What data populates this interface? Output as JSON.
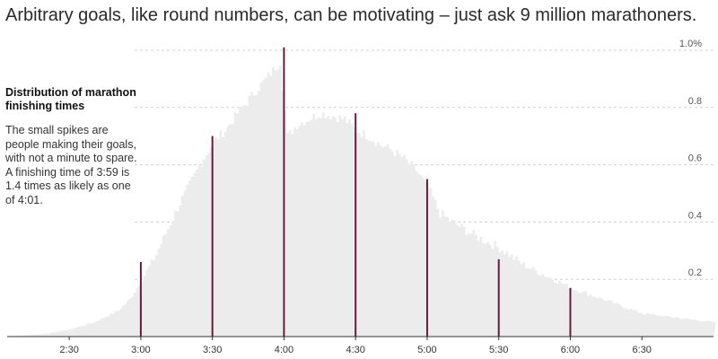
{
  "headline": "Arbitrary goals, like round numbers, can be motivating – just ask 9 million marathoners.",
  "annotation": {
    "title": "Distribution of marathon finishing times",
    "body": "The small spikes are people making their goals, with not a minute to spare. A finishing time of 3:59 is 1.4 times as likely as one of 4:01."
  },
  "colors": {
    "background": "#ffffff",
    "area": "#ececec",
    "bars": "#6b1a3e",
    "grid": "#cfcfcf",
    "axis": "#333333"
  },
  "chart_data": {
    "type": "area",
    "title": "Distribution of marathon finishing times",
    "xlabel": "",
    "ylabel": "",
    "xlim": [
      "2:04",
      "7:00"
    ],
    "ylim": [
      0,
      1.05
    ],
    "grid": true,
    "x_ticks": [
      "2:30",
      "3:00",
      "3:30",
      "4:00",
      "4:30",
      "5:00",
      "5:30",
      "6:00",
      "6:30"
    ],
    "y_ticks": [
      {
        "value": 0.2,
        "label": "0.2"
      },
      {
        "value": 0.4,
        "label": "0.4"
      },
      {
        "value": 0.6,
        "label": "0.6"
      },
      {
        "value": 0.8,
        "label": "0.8"
      },
      {
        "value": 1.0,
        "label": "1.0%"
      }
    ],
    "distribution": {
      "x": [
        "2:04",
        "2:20",
        "2:30",
        "2:40",
        "2:50",
        "2:55",
        "3:00",
        "3:05",
        "3:10",
        "3:15",
        "3:20",
        "3:25",
        "3:30",
        "3:35",
        "3:40",
        "3:45",
        "3:50",
        "3:55",
        "3:58",
        "4:01",
        "4:05",
        "4:10",
        "4:15",
        "4:20",
        "4:25",
        "4:30",
        "4:35",
        "4:40",
        "4:45",
        "4:50",
        "4:55",
        "5:00",
        "5:05",
        "5:10",
        "5:20",
        "5:30",
        "5:40",
        "5:50",
        "6:00",
        "6:10",
        "6:20",
        "6:30",
        "6:40",
        "7:00"
      ],
      "values": [
        0.0,
        0.01,
        0.025,
        0.05,
        0.09,
        0.13,
        0.2,
        0.27,
        0.36,
        0.45,
        0.53,
        0.61,
        0.68,
        0.72,
        0.78,
        0.83,
        0.88,
        0.93,
        0.96,
        0.7,
        0.74,
        0.76,
        0.78,
        0.77,
        0.76,
        0.72,
        0.7,
        0.67,
        0.65,
        0.62,
        0.58,
        0.52,
        0.43,
        0.4,
        0.35,
        0.31,
        0.25,
        0.21,
        0.17,
        0.14,
        0.11,
        0.08,
        0.07,
        0.05
      ]
    },
    "spikes": {
      "x": [
        "3:00",
        "3:30",
        "4:00",
        "4:30",
        "5:00",
        "5:30",
        "6:00"
      ],
      "values": [
        0.26,
        0.7,
        1.01,
        0.78,
        0.55,
        0.27,
        0.17
      ]
    }
  }
}
